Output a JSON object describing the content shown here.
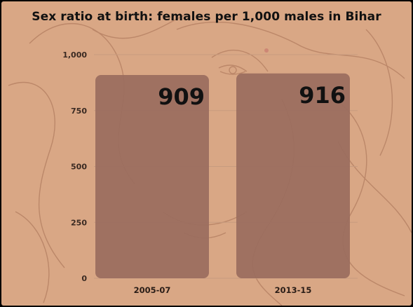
{
  "colors": {
    "background": "#d9a785",
    "bar": "#9a6c5e",
    "art_line": "#b88466",
    "grid": "#c79b7f"
  },
  "chart_data": {
    "type": "bar",
    "title": "Sex ratio at birth: females per 1,000 males in Bihar",
    "categories": [
      "2005-07",
      "2013-15"
    ],
    "values": [
      909,
      916
    ],
    "value_labels": [
      "909",
      "916"
    ],
    "xlabel": "",
    "ylabel": "",
    "ylim": [
      0,
      1000
    ],
    "yticks": [
      0,
      250,
      500,
      750,
      1000
    ],
    "ytick_labels": [
      "0",
      "250",
      "500",
      "750",
      "1,000"
    ],
    "grid": true,
    "legend": "none"
  }
}
